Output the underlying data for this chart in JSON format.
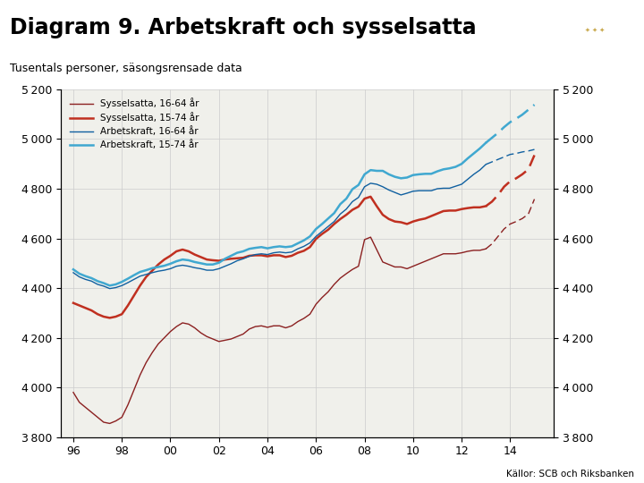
{
  "title": "Diagram 9. Arbetskraft och sysselsatta",
  "subtitle": "Tusentals personer, säsongsrensade data",
  "source": "Källor: SCB och Riksbanken",
  "title_fontsize": 17,
  "subtitle_fontsize": 9,
  "ylim": [
    3800,
    5200
  ],
  "yticks": [
    3800,
    4000,
    4200,
    4400,
    4600,
    4800,
    5000,
    5200
  ],
  "xtick_labels": [
    "96",
    "98",
    "00",
    "02",
    "04",
    "06",
    "08",
    "10",
    "12",
    "14"
  ],
  "xtick_positions": [
    1996,
    1998,
    2000,
    2002,
    2004,
    2006,
    2008,
    2010,
    2012,
    2014
  ],
  "xlim": [
    1995.5,
    2015.8
  ],
  "color_syss_1664": "#8B2020",
  "color_syss_1574": "#C03020",
  "color_arb_1664": "#1060A0",
  "color_arb_1574": "#40A8D0",
  "lw_syss_1664": 1.0,
  "lw_syss_1574": 1.8,
  "lw_arb_1664": 1.0,
  "lw_arb_1574": 1.8,
  "footer_color": "#1B3A6B",
  "grid_color": "#cccccc",
  "background": "#f0f0eb",
  "legend_labels": [
    "Sysselsatta, 16-64 år",
    "Sysselsatta, 15-74 år",
    "Arbetskraft, 16-64 år",
    "Arbetskraft, 15-74 år"
  ],
  "forecast_start_year": 2013.0,
  "syss_1664_x": [
    1996.0,
    1996.25,
    1996.5,
    1996.75,
    1997.0,
    1997.25,
    1997.5,
    1997.75,
    1998.0,
    1998.25,
    1998.5,
    1998.75,
    1999.0,
    1999.25,
    1999.5,
    1999.75,
    2000.0,
    2000.25,
    2000.5,
    2000.75,
    2001.0,
    2001.25,
    2001.5,
    2001.75,
    2002.0,
    2002.25,
    2002.5,
    2002.75,
    2003.0,
    2003.25,
    2003.5,
    2003.75,
    2004.0,
    2004.25,
    2004.5,
    2004.75,
    2005.0,
    2005.25,
    2005.5,
    2005.75,
    2006.0,
    2006.25,
    2006.5,
    2006.75,
    2007.0,
    2007.25,
    2007.5,
    2007.75,
    2008.0,
    2008.25,
    2008.5,
    2008.75,
    2009.0,
    2009.25,
    2009.5,
    2009.75,
    2010.0,
    2010.25,
    2010.5,
    2010.75,
    2011.0,
    2011.25,
    2011.5,
    2011.75,
    2012.0,
    2012.25,
    2012.5,
    2012.75,
    2013.0,
    2013.25,
    2013.5,
    2013.75,
    2014.0,
    2014.25,
    2014.5,
    2014.75,
    2015.0
  ],
  "syss_1664_y": [
    3980,
    3940,
    3920,
    3900,
    3880,
    3860,
    3855,
    3865,
    3880,
    3930,
    3990,
    4050,
    4100,
    4140,
    4175,
    4200,
    4225,
    4245,
    4260,
    4255,
    4240,
    4220,
    4205,
    4195,
    4185,
    4190,
    4195,
    4205,
    4215,
    4235,
    4245,
    4248,
    4242,
    4248,
    4248,
    4240,
    4248,
    4265,
    4278,
    4295,
    4335,
    4362,
    4385,
    4415,
    4440,
    4458,
    4475,
    4488,
    4595,
    4605,
    4555,
    4505,
    4495,
    4485,
    4485,
    4478,
    4488,
    4498,
    4508,
    4518,
    4528,
    4538,
    4538,
    4538,
    4542,
    4548,
    4552,
    4552,
    4558,
    4578,
    4608,
    4638,
    4658,
    4668,
    4680,
    4698,
    4758
  ],
  "syss_1574_x": [
    1996.0,
    1996.25,
    1996.5,
    1996.75,
    1997.0,
    1997.25,
    1997.5,
    1997.75,
    1998.0,
    1998.25,
    1998.5,
    1998.75,
    1999.0,
    1999.25,
    1999.5,
    1999.75,
    2000.0,
    2000.25,
    2000.5,
    2000.75,
    2001.0,
    2001.25,
    2001.5,
    2001.75,
    2002.0,
    2002.25,
    2002.5,
    2002.75,
    2003.0,
    2003.25,
    2003.5,
    2003.75,
    2004.0,
    2004.25,
    2004.5,
    2004.75,
    2005.0,
    2005.25,
    2005.5,
    2005.75,
    2006.0,
    2006.25,
    2006.5,
    2006.75,
    2007.0,
    2007.25,
    2007.5,
    2007.75,
    2008.0,
    2008.25,
    2008.5,
    2008.75,
    2009.0,
    2009.25,
    2009.5,
    2009.75,
    2010.0,
    2010.25,
    2010.5,
    2010.75,
    2011.0,
    2011.25,
    2011.5,
    2011.75,
    2012.0,
    2012.25,
    2012.5,
    2012.75,
    2013.0,
    2013.25,
    2013.5,
    2013.75,
    2014.0,
    2014.25,
    2014.5,
    2014.75,
    2015.0
  ],
  "syss_1574_y": [
    4340,
    4330,
    4320,
    4310,
    4295,
    4285,
    4280,
    4285,
    4295,
    4330,
    4370,
    4410,
    4445,
    4470,
    4495,
    4515,
    4530,
    4548,
    4555,
    4548,
    4535,
    4525,
    4515,
    4512,
    4510,
    4515,
    4518,
    4520,
    4522,
    4530,
    4532,
    4532,
    4528,
    4532,
    4532,
    4525,
    4530,
    4542,
    4550,
    4565,
    4598,
    4618,
    4635,
    4658,
    4678,
    4695,
    4715,
    4728,
    4760,
    4768,
    4730,
    4695,
    4678,
    4668,
    4665,
    4658,
    4668,
    4675,
    4680,
    4690,
    4700,
    4710,
    4712,
    4712,
    4718,
    4722,
    4725,
    4725,
    4730,
    4748,
    4775,
    4808,
    4830,
    4842,
    4858,
    4878,
    4935
  ],
  "arb_1664_x": [
    1996.0,
    1996.25,
    1996.5,
    1996.75,
    1997.0,
    1997.25,
    1997.5,
    1997.75,
    1998.0,
    1998.25,
    1998.5,
    1998.75,
    1999.0,
    1999.25,
    1999.5,
    1999.75,
    2000.0,
    2000.25,
    2000.5,
    2000.75,
    2001.0,
    2001.25,
    2001.5,
    2001.75,
    2002.0,
    2002.25,
    2002.5,
    2002.75,
    2003.0,
    2003.25,
    2003.5,
    2003.75,
    2004.0,
    2004.25,
    2004.5,
    2004.75,
    2005.0,
    2005.25,
    2005.5,
    2005.75,
    2006.0,
    2006.25,
    2006.5,
    2006.75,
    2007.0,
    2007.25,
    2007.5,
    2007.75,
    2008.0,
    2008.25,
    2008.5,
    2008.75,
    2009.0,
    2009.25,
    2009.5,
    2009.75,
    2010.0,
    2010.25,
    2010.5,
    2010.75,
    2011.0,
    2011.25,
    2011.5,
    2011.75,
    2012.0,
    2012.25,
    2012.5,
    2012.75,
    2013.0,
    2013.25,
    2013.5,
    2013.75,
    2014.0,
    2014.25,
    2014.5,
    2014.75,
    2015.0
  ],
  "arb_1664_y": [
    4462,
    4445,
    4435,
    4428,
    4415,
    4408,
    4398,
    4402,
    4410,
    4422,
    4435,
    4448,
    4455,
    4462,
    4468,
    4472,
    4478,
    4488,
    4492,
    4488,
    4482,
    4478,
    4472,
    4472,
    4478,
    4488,
    4498,
    4510,
    4518,
    4528,
    4535,
    4538,
    4535,
    4542,
    4545,
    4542,
    4545,
    4558,
    4568,
    4582,
    4608,
    4628,
    4648,
    4668,
    4698,
    4718,
    4748,
    4765,
    4808,
    4822,
    4818,
    4808,
    4795,
    4785,
    4775,
    4782,
    4790,
    4792,
    4792,
    4792,
    4800,
    4802,
    4802,
    4810,
    4818,
    4838,
    4858,
    4875,
    4898,
    4908,
    4918,
    4928,
    4938,
    4942,
    4948,
    4952,
    4958
  ],
  "arb_1574_x": [
    1996.0,
    1996.25,
    1996.5,
    1996.75,
    1997.0,
    1997.25,
    1997.5,
    1997.75,
    1998.0,
    1998.25,
    1998.5,
    1998.75,
    1999.0,
    1999.25,
    1999.5,
    1999.75,
    2000.0,
    2000.25,
    2000.5,
    2000.75,
    2001.0,
    2001.25,
    2001.5,
    2001.75,
    2002.0,
    2002.25,
    2002.5,
    2002.75,
    2003.0,
    2003.25,
    2003.5,
    2003.75,
    2004.0,
    2004.25,
    2004.5,
    2004.75,
    2005.0,
    2005.25,
    2005.5,
    2005.75,
    2006.0,
    2006.25,
    2006.5,
    2006.75,
    2007.0,
    2007.25,
    2007.5,
    2007.75,
    2008.0,
    2008.25,
    2008.5,
    2008.75,
    2009.0,
    2009.25,
    2009.5,
    2009.75,
    2010.0,
    2010.25,
    2010.5,
    2010.75,
    2011.0,
    2011.25,
    2011.5,
    2011.75,
    2012.0,
    2012.25,
    2012.5,
    2012.75,
    2013.0,
    2013.25,
    2013.5,
    2013.75,
    2014.0,
    2014.25,
    2014.5,
    2014.75,
    2015.0
  ],
  "arb_1574_y": [
    4475,
    4458,
    4448,
    4440,
    4428,
    4420,
    4410,
    4415,
    4425,
    4438,
    4452,
    4465,
    4472,
    4480,
    4485,
    4490,
    4498,
    4508,
    4515,
    4512,
    4505,
    4500,
    4495,
    4495,
    4502,
    4518,
    4530,
    4542,
    4548,
    4558,
    4562,
    4565,
    4560,
    4565,
    4568,
    4565,
    4568,
    4580,
    4592,
    4608,
    4638,
    4658,
    4680,
    4702,
    4738,
    4760,
    4798,
    4815,
    4858,
    4875,
    4872,
    4872,
    4858,
    4848,
    4842,
    4845,
    4855,
    4858,
    4860,
    4860,
    4870,
    4878,
    4882,
    4888,
    4900,
    4922,
    4942,
    4962,
    4985,
    5005,
    5025,
    5048,
    5068,
    5082,
    5098,
    5118,
    5138
  ]
}
